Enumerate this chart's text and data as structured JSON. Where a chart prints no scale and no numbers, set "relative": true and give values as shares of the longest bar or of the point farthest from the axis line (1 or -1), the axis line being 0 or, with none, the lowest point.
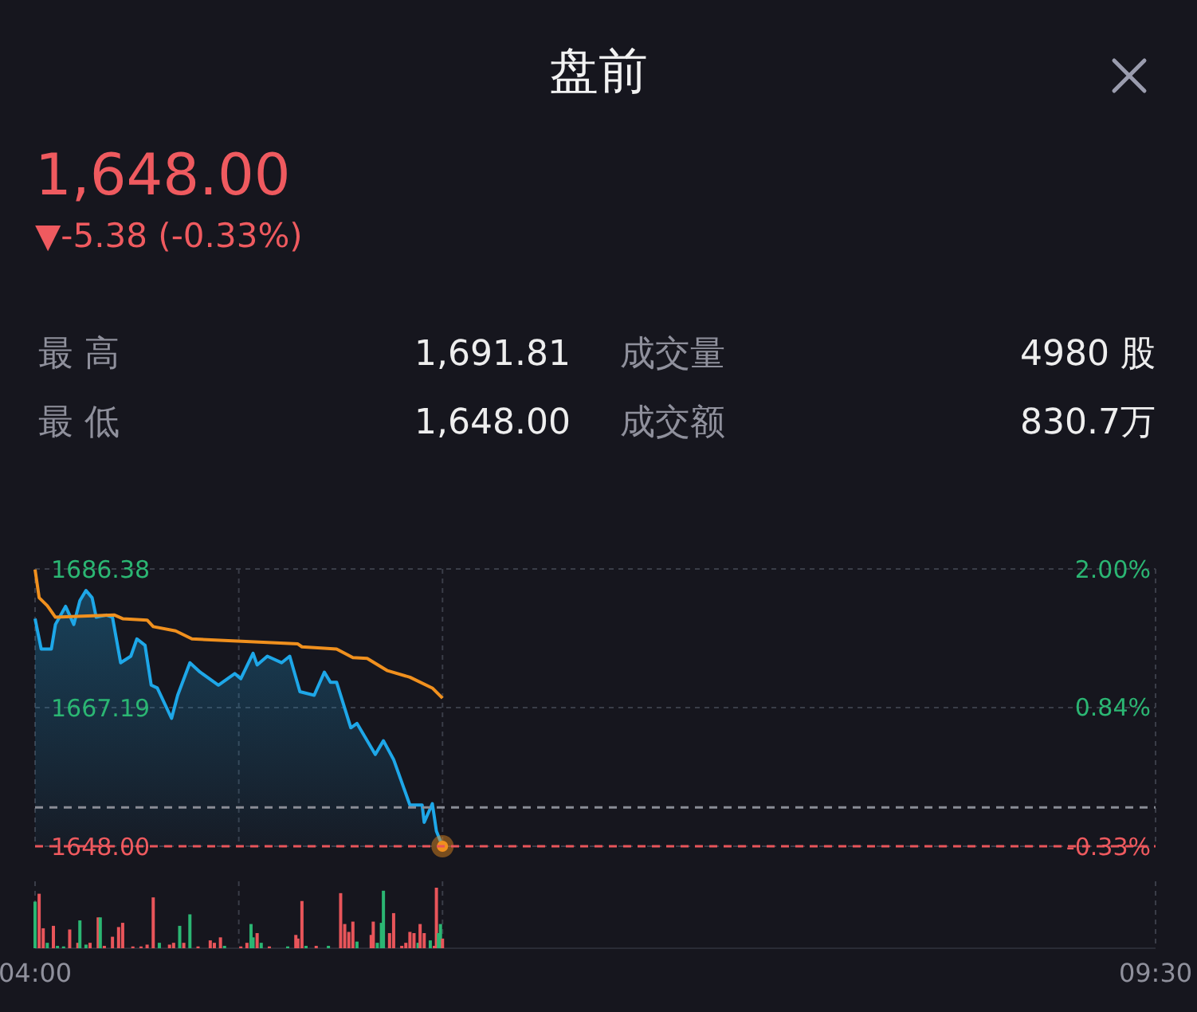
{
  "chart_data": [
    {
      "type": "line",
      "title": "盘前",
      "annotations": [
        "1,648.00",
        "▼-5.38 (-0.33%)",
        "最 高",
        "1,691.81",
        "成交量",
        "4980 股",
        "最 低",
        "1,648.00",
        "成交额",
        "830.7万"
      ],
      "xlim": [
        4,
        9.5
      ],
      "xticks": [
        {
          "value": 4,
          "label": null
        },
        {
          "value": 5,
          "label": null
        },
        {
          "value": 6,
          "label": null
        },
        {
          "value": 9.5,
          "label": null
        }
      ],
      "ylim": [
        1648.0,
        1686.38
      ],
      "yticks": [
        {
          "value": 1648.0,
          "label": "1648.00"
        },
        {
          "value": 1667.19,
          "label": "1667.19"
        },
        {
          "value": 1686.38,
          "label": "1686.38"
        }
      ],
      "y2lim": [
        -0.33,
        2.0
      ],
      "y2ticks": [
        {
          "value": -0.33,
          "label": "-0.33%"
        },
        {
          "value": 0.84,
          "label": "0.84%"
        },
        {
          "value": 2.0,
          "label": "2.00%"
        }
      ],
      "tick_labels": "y",
      "grid": true,
      "ref_lines": [
        {
          "axis": "y",
          "value": 1653.38,
          "color": "#8a8d96",
          "line_style": "dashed"
        },
        {
          "axis": "y",
          "value": 1648.0,
          "color": "#e8555a",
          "line_style": "dashed"
        }
      ],
      "series": [
        {
          "type": "area",
          "color": "#1ea7e8",
          "x": [
            4.0,
            4.03,
            4.08,
            4.1,
            4.15,
            4.19,
            4.22,
            4.25,
            4.28,
            4.3,
            4.35,
            4.38,
            4.42,
            4.47,
            4.5,
            4.54,
            4.57,
            4.6,
            4.67,
            4.7,
            4.76,
            4.81,
            4.9,
            4.98,
            5.01,
            5.07,
            5.09,
            5.14,
            5.21,
            5.25,
            5.3,
            5.37,
            5.42,
            5.45,
            5.48,
            5.55,
            5.58,
            5.67,
            5.71,
            5.76,
            5.84,
            5.9,
            5.91,
            5.95,
            5.97,
            6.0
          ],
          "values": [
            1679.5,
            1675.3,
            1675.3,
            1678.7,
            1681.2,
            1678.7,
            1682.0,
            1683.4,
            1682.4,
            1679.7,
            1680.0,
            1679.7,
            1673.4,
            1674.3,
            1676.7,
            1675.8,
            1670.3,
            1669.9,
            1665.7,
            1668.9,
            1673.4,
            1672.1,
            1670.3,
            1671.9,
            1671.2,
            1674.7,
            1673.1,
            1674.3,
            1673.4,
            1674.3,
            1669.4,
            1668.9,
            1672.1,
            1670.7,
            1670.7,
            1664.4,
            1665.0,
            1660.7,
            1662.6,
            1660.0,
            1653.7,
            1653.7,
            1651.3,
            1653.9,
            1650.1,
            1648.0
          ]
        },
        {
          "type": "line",
          "color": "#f0901e",
          "x": [
            4.0,
            4.02,
            4.06,
            4.1,
            4.39,
            4.43,
            4.55,
            4.58,
            4.69,
            4.77,
            5.29,
            5.31,
            5.48,
            5.56,
            5.63,
            5.73,
            5.84,
            5.95,
            6.0
          ],
          "values": [
            1686.3,
            1682.4,
            1681.3,
            1679.7,
            1680.0,
            1679.5,
            1679.3,
            1678.4,
            1677.8,
            1676.7,
            1676.0,
            1675.6,
            1675.3,
            1674.1,
            1674.0,
            1672.3,
            1671.4,
            1669.9,
            1668.5
          ]
        },
        {
          "type": "scatter",
          "color": "#f0901e",
          "x": [
            6.0
          ],
          "values": [
            1648.0
          ]
        }
      ]
    },
    {
      "type": "bar",
      "relative": true,
      "xlim": [
        4,
        9.5
      ],
      "xticks": [
        {
          "value": 4,
          "label": "04:00"
        },
        {
          "value": 5,
          "label": null
        },
        {
          "value": 6,
          "label": null
        },
        {
          "value": 9.5,
          "label": "09:30"
        }
      ],
      "tick_labels": "x",
      "grid": "x",
      "x": [
        4.0,
        4.02,
        4.04,
        4.06,
        4.09,
        4.11,
        4.14,
        4.17,
        4.21,
        4.22,
        4.25,
        4.27,
        4.31,
        4.32,
        4.34,
        4.38,
        4.41,
        4.43,
        4.48,
        4.52,
        4.55,
        4.58,
        4.61,
        4.66,
        4.68,
        4.71,
        4.73,
        4.76,
        4.8,
        4.86,
        4.88,
        4.91,
        4.93,
        5.01,
        5.04,
        5.06,
        5.07,
        5.09,
        5.11,
        5.15,
        5.24,
        5.28,
        5.29,
        5.31,
        5.33,
        5.38,
        5.44,
        5.5,
        5.52,
        5.54,
        5.56,
        5.58,
        5.65,
        5.66,
        5.68,
        5.7,
        5.71,
        5.74,
        5.76,
        5.8,
        5.82,
        5.84,
        5.86,
        5.88,
        5.89,
        5.91,
        5.94,
        5.96,
        5.97,
        5.98,
        5.99,
        6.0
      ],
      "values": [
        0.77,
        0.9,
        0.33,
        0.09,
        0.37,
        0.04,
        0.03,
        0.31,
        0.09,
        0.46,
        0.06,
        0.09,
        0.51,
        0.51,
        0.04,
        0.19,
        0.35,
        0.42,
        0.03,
        0.03,
        0.06,
        0.84,
        0.09,
        0.06,
        0.09,
        0.37,
        0.09,
        0.56,
        0.03,
        0.13,
        0.09,
        0.18,
        0.04,
        0.03,
        0.09,
        0.4,
        0.18,
        0.25,
        0.09,
        0.03,
        0.03,
        0.22,
        0.16,
        0.78,
        0.04,
        0.04,
        0.04,
        0.91,
        0.4,
        0.27,
        0.44,
        0.11,
        0.22,
        0.44,
        0.09,
        0.42,
        0.95,
        0.25,
        0.58,
        0.04,
        0.09,
        0.27,
        0.25,
        0.09,
        0.4,
        0.25,
        0.13,
        0.04,
        1,
        0.25,
        0.4,
        0.16
      ],
      "colors": [
        "#2bb673",
        "#e8555a",
        "#e8555a",
        "#2bb673",
        "#e8555a",
        "#2bb673",
        "#2bb673",
        "#e8555a",
        "#e8555a",
        "#2bb673",
        "#2bb673",
        "#e8555a",
        "#e8555a",
        "#2bb673",
        "#e8555a",
        "#e8555a",
        "#e8555a",
        "#e8555a",
        "#e8555a",
        "#e8555a",
        "#e8555a",
        "#e8555a",
        "#2bb673",
        "#e8555a",
        "#e8555a",
        "#2bb673",
        "#e8555a",
        "#2bb673",
        "#e8555a",
        "#e8555a",
        "#e8555a",
        "#e8555a",
        "#2bb673",
        "#e8555a",
        "#e8555a",
        "#2bb673",
        "#2bb673",
        "#e8555a",
        "#2bb673",
        "#e8555a",
        "#2bb673",
        "#e8555a",
        "#e8555a",
        "#e8555a",
        "#2bb673",
        "#e8555a",
        "#2bb673",
        "#e8555a",
        "#e8555a",
        "#e8555a",
        "#e8555a",
        "#2bb673",
        "#e8555a",
        "#e8555a",
        "#2bb673",
        "#2bb673",
        "#2bb673",
        "#e8555a",
        "#e8555a",
        "#e8555a",
        "#e8555a",
        "#e8555a",
        "#e8555a",
        "#2bb673",
        "#e8555a",
        "#e8555a",
        "#2bb673",
        "#e8555a",
        "#e8555a",
        "#2bb673",
        "#2bb673",
        "#e8555a"
      ]
    }
  ]
}
